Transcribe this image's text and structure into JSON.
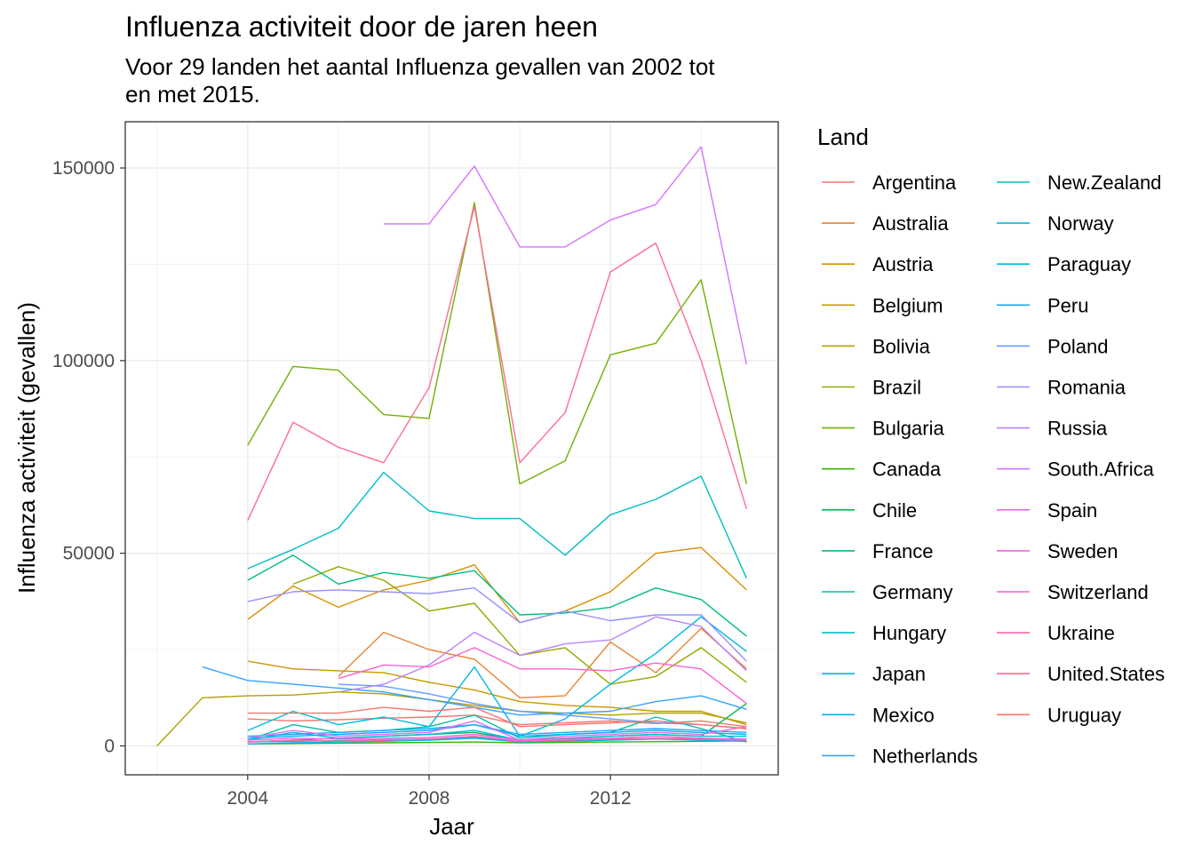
{
  "chart_data": {
    "type": "line",
    "title": "Influenza activiteit door de jaren heen",
    "subtitle_lines": [
      "Voor 29 landen het aantal Influenza gevallen van 2002 tot",
      "en met 2015."
    ],
    "xlabel": "Jaar",
    "ylabel": "Influenza activiteit (gevallen)",
    "xlim": [
      2001.3,
      2015.7
    ],
    "ylim": [
      -7500,
      162000
    ],
    "x_ticks": [
      2004,
      2008,
      2012
    ],
    "y_ticks": [
      0,
      50000,
      100000,
      150000
    ],
    "grid": true,
    "legend_position": "right",
    "legend_title": "Land",
    "legend_columns": 2,
    "series": [
      {
        "name": "Argentina",
        "color": "#F8766D",
        "x": [
          2004,
          2005,
          2006,
          2007,
          2008,
          2009,
          2010,
          2011,
          2012,
          2013,
          2014,
          2015
        ],
        "y": [
          7000,
          6500,
          6800,
          7200,
          7500,
          8000,
          5500,
          6000,
          6500,
          5800,
          6500,
          5000
        ]
      },
      {
        "name": "Australia",
        "color": "#EA8331",
        "x": [
          2006,
          2007,
          2008,
          2009,
          2010,
          2011,
          2012,
          2013,
          2014,
          2015
        ],
        "y": [
          18000,
          29500,
          25000,
          22500,
          12500,
          13000,
          27000,
          19000,
          30500,
          20000
        ]
      },
      {
        "name": "Austria",
        "color": "#DB8E00",
        "x": [
          2004,
          2005,
          2006,
          2007,
          2008,
          2009,
          2010,
          2011,
          2012,
          2013,
          2014,
          2015
        ],
        "y": [
          32800,
          41500,
          36000,
          40500,
          43000,
          47000,
          32000,
          35000,
          40000,
          50000,
          51500,
          40500
        ]
      },
      {
        "name": "Belgium",
        "color": "#C79800",
        "x": [
          2004,
          2005,
          2006,
          2007,
          2008,
          2009,
          2010,
          2011,
          2012,
          2013,
          2014,
          2015
        ],
        "y": [
          22000,
          20000,
          19500,
          19000,
          16500,
          14500,
          11500,
          10500,
          10000,
          9000,
          9000,
          5500
        ]
      },
      {
        "name": "Bolivia",
        "color": "#B0A100",
        "x": [
          2002,
          2003,
          2004,
          2005,
          2006,
          2007,
          2008,
          2009,
          2010,
          2011,
          2012,
          2013,
          2014,
          2015
        ],
        "y": [
          0,
          12500,
          13000,
          13200,
          14000,
          13500,
          12000,
          10500,
          9000,
          8500,
          8000,
          8500,
          8500,
          6000
        ]
      },
      {
        "name": "Brazil",
        "color": "#95A900",
        "x": [
          2005,
          2006,
          2007,
          2008,
          2009,
          2010,
          2011,
          2012,
          2013,
          2014,
          2015
        ],
        "y": [
          42000,
          46500,
          43000,
          35000,
          37000,
          23500,
          25500,
          16000,
          18000,
          25500,
          16500
        ]
      },
      {
        "name": "Bulgaria",
        "color": "#72B000",
        "x": [
          2004,
          2005,
          2006,
          2007,
          2008,
          2009,
          2010,
          2011,
          2012,
          2013,
          2014,
          2015
        ],
        "y": [
          78000,
          98500,
          97500,
          86000,
          85000,
          141000,
          68000,
          74000,
          101500,
          104500,
          121000,
          68000
        ]
      },
      {
        "name": "Canada",
        "color": "#39B600",
        "x": [
          2004,
          2005,
          2006,
          2007,
          2008,
          2009,
          2010,
          2011,
          2012,
          2013,
          2014,
          2015
        ],
        "y": [
          500,
          600,
          700,
          800,
          900,
          1000,
          800,
          900,
          1000,
          1100,
          1200,
          1300
        ]
      },
      {
        "name": "Chile",
        "color": "#00BB4E",
        "x": [
          2004,
          2005,
          2006,
          2007,
          2008,
          2009,
          2010,
          2011,
          2012,
          2013,
          2014,
          2015
        ],
        "y": [
          1000,
          1500,
          2000,
          2500,
          3000,
          3500,
          1500,
          2000,
          2500,
          3000,
          2500,
          11000
        ]
      },
      {
        "name": "France",
        "color": "#00BF7D",
        "x": [
          2004,
          2005,
          2006,
          2007,
          2008,
          2009,
          2010,
          2011,
          2012,
          2013,
          2014,
          2015
        ],
        "y": [
          43000,
          49500,
          42000,
          45000,
          43500,
          45500,
          34000,
          34500,
          36000,
          41000,
          38000,
          28500
        ]
      },
      {
        "name": "Germany",
        "color": "#00C1A3",
        "x": [
          2004,
          2005,
          2006,
          2007,
          2008,
          2009,
          2010,
          2011,
          2012,
          2013,
          2014,
          2015
        ],
        "y": [
          1500,
          5500,
          3500,
          4000,
          5000,
          8000,
          2000,
          3000,
          3500,
          7500,
          4500,
          1000
        ]
      },
      {
        "name": "Hungary",
        "color": "#00BFC4",
        "x": [
          2004,
          2005,
          2006,
          2007,
          2008,
          2009,
          2010,
          2011,
          2012,
          2013,
          2014,
          2015
        ],
        "y": [
          46000,
          51000,
          56500,
          71000,
          61000,
          59000,
          59000,
          49500,
          60000,
          64000,
          70000,
          43500
        ]
      },
      {
        "name": "Japan",
        "color": "#00BAE0",
        "x": [
          2004,
          2005,
          2006,
          2007,
          2008,
          2009,
          2010,
          2011,
          2012,
          2013,
          2014,
          2015
        ],
        "y": [
          4000,
          9000,
          5500,
          7500,
          5000,
          20500,
          2500,
          7000,
          16000,
          24000,
          33500,
          24500
        ]
      },
      {
        "name": "Mexico",
        "color": "#00B0F6",
        "x": [
          2004,
          2005,
          2006,
          2007,
          2008,
          2009,
          2010,
          2011,
          2012,
          2013,
          2014,
          2015
        ],
        "y": [
          2000,
          2500,
          3000,
          3500,
          4000,
          5500,
          2500,
          3000,
          3500,
          4000,
          3500,
          3000
        ]
      },
      {
        "name": "Netherlands",
        "color": "#35A2FF",
        "x": [
          2003,
          2004,
          2005,
          2006,
          2007,
          2008,
          2009,
          2010,
          2011,
          2012,
          2013,
          2014,
          2015
        ],
        "y": [
          20500,
          17000,
          16000,
          15000,
          14000,
          12000,
          10000,
          8000,
          8500,
          9000,
          11500,
          13000,
          9500
        ]
      },
      {
        "name": "New.Zealand",
        "color": "#00BFC4",
        "x": [
          2004,
          2005,
          2006,
          2007,
          2008,
          2009,
          2010,
          2011,
          2012,
          2013,
          2014,
          2015
        ],
        "y": [
          1000,
          1200,
          1400,
          1600,
          1800,
          2200,
          1200,
          1400,
          1600,
          1800,
          2000,
          1500
        ]
      },
      {
        "name": "Norway",
        "color": "#00BCD8",
        "x": [
          2004,
          2005,
          2006,
          2007,
          2008,
          2009,
          2010,
          2011,
          2012,
          2013,
          2014,
          2015
        ],
        "y": [
          1500,
          3500,
          2000,
          2500,
          3000,
          4000,
          1500,
          2000,
          2500,
          3000,
          2500,
          2500
        ]
      },
      {
        "name": "Paraguay",
        "color": "#00B4EF",
        "x": [
          2004,
          2005,
          2006,
          2007,
          2008,
          2009,
          2010,
          2011,
          2012,
          2013,
          2014,
          2015
        ],
        "y": [
          500,
          800,
          1000,
          1200,
          1500,
          2000,
          1000,
          1200,
          1500,
          1800,
          1500,
          1200
        ]
      },
      {
        "name": "Peru",
        "color": "#1AA7FF",
        "x": [
          2004,
          2005,
          2006,
          2007,
          2008,
          2009,
          2010,
          2011,
          2012,
          2013,
          2014,
          2015
        ],
        "y": [
          2500,
          3000,
          3500,
          4000,
          4500,
          5500,
          3000,
          3500,
          4000,
          4500,
          4000,
          3500
        ]
      },
      {
        "name": "Poland",
        "color": "#619CFF",
        "x": [
          2006,
          2007,
          2008,
          2009,
          2010,
          2011,
          2012,
          2013,
          2014,
          2015
        ],
        "y": [
          16000,
          15500,
          13500,
          11000,
          9000,
          8000,
          7000,
          6000,
          5500,
          4500
        ]
      },
      {
        "name": "Romania",
        "color": "#9590FF",
        "x": [
          2004,
          2005,
          2006,
          2007,
          2008,
          2009,
          2010,
          2011,
          2012,
          2013,
          2014,
          2015
        ],
        "y": [
          37500,
          40000,
          40500,
          40000,
          39500,
          41000,
          32000,
          35000,
          32500,
          34000,
          34000,
          22000
        ]
      },
      {
        "name": "Russia",
        "color": "#B983FF",
        "x": [
          2006,
          2007,
          2008,
          2009,
          2010,
          2011,
          2012,
          2013,
          2014,
          2015
        ],
        "y": [
          14000,
          16000,
          21000,
          29500,
          23500,
          26500,
          27500,
          33500,
          31000,
          19500
        ]
      },
      {
        "name": "South.Africa",
        "color": "#D575FE",
        "x": [
          2007,
          2008,
          2009,
          2010,
          2011,
          2012,
          2013,
          2014,
          2015
        ],
        "y": [
          135500,
          135500,
          150500,
          129500,
          129500,
          136500,
          140500,
          155500,
          99000
        ]
      },
      {
        "name": "Spain",
        "color": "#E76BF3",
        "x": [
          2004,
          2005,
          2006,
          2007,
          2008,
          2009,
          2010,
          2011,
          2012,
          2013,
          2014,
          2015
        ],
        "y": [
          2000,
          4000,
          2500,
          3000,
          3500,
          6500,
          1500,
          2500,
          3000,
          3500,
          3000,
          5000
        ]
      },
      {
        "name": "Sweden",
        "color": "#F564E3",
        "x": [
          2004,
          2005,
          2006,
          2007,
          2008,
          2009,
          2010,
          2011,
          2012,
          2013,
          2014,
          2015
        ],
        "y": [
          1500,
          2000,
          1800,
          2000,
          2200,
          3000,
          1500,
          1800,
          2000,
          2500,
          2000,
          1800
        ]
      },
      {
        "name": "Switzerland",
        "color": "#FD61D1",
        "x": [
          2006,
          2007,
          2008,
          2009,
          2010,
          2011,
          2012,
          2013,
          2014,
          2015
        ],
        "y": [
          17500,
          21000,
          20500,
          25500,
          20000,
          20000,
          19500,
          21500,
          20000,
          11000
        ]
      },
      {
        "name": "Ukraine",
        "color": "#FF64B0",
        "x": [
          2004,
          2005,
          2006,
          2007,
          2008,
          2009,
          2010,
          2011,
          2012,
          2013,
          2014,
          2015
        ],
        "y": [
          1000,
          1500,
          1200,
          1500,
          1800,
          2500,
          1200,
          1500,
          1800,
          2000,
          1800,
          1500
        ]
      },
      {
        "name": "United.States",
        "color": "#FF6C91",
        "x": [
          2004,
          2005,
          2006,
          2007,
          2008,
          2009,
          2010,
          2011,
          2012,
          2013,
          2014,
          2015
        ],
        "y": [
          58500,
          84000,
          77500,
          73500,
          93000,
          140000,
          73500,
          86500,
          123000,
          130500,
          100000,
          61500
        ]
      },
      {
        "name": "Uruguay",
        "color": "#F8766D",
        "x": [
          2004,
          2005,
          2006,
          2007,
          2008,
          2009,
          2010,
          2011,
          2012,
          2013,
          2014,
          2015
        ],
        "y": [
          8500,
          8500,
          8500,
          10000,
          9000,
          10000,
          5000,
          5500,
          6000,
          6500,
          5500,
          4500
        ]
      }
    ]
  }
}
